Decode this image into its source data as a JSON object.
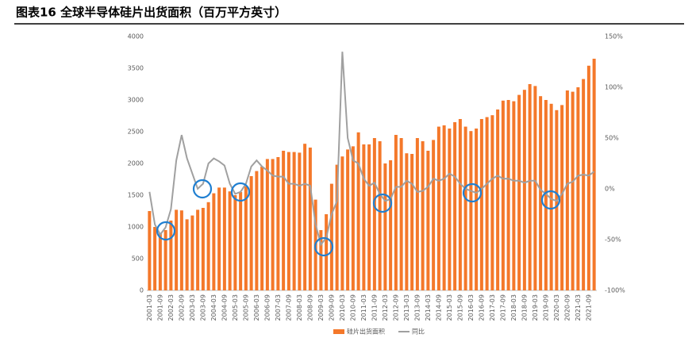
{
  "chart_data": {
    "type": "bar_line",
    "title": "图表16  全球半导体硅片出货面积（百万平方英寸）",
    "categories": [
      "2001-03",
      null,
      "2001-09",
      null,
      "2002-03",
      null,
      "2002-09",
      null,
      "2003-03",
      null,
      "2003-09",
      null,
      "2004-03",
      null,
      "2004-09",
      null,
      "2005-03",
      null,
      "2005-09",
      null,
      "2006-03",
      null,
      "2006-09",
      null,
      "2007-03",
      null,
      "2007-09",
      null,
      "2008-03",
      null,
      "2008-09",
      null,
      "2009-03",
      null,
      "2009-09",
      null,
      "2010-03",
      null,
      "2010-09",
      null,
      "2011-03",
      null,
      "2011-09",
      null,
      "2012-03",
      null,
      "2012-09",
      null,
      "2013-03",
      null,
      "2013-09",
      null,
      "2014-03",
      null,
      "2014-09",
      null,
      "2015-03",
      null,
      "2015-09",
      null,
      "2016-03",
      null,
      "2016-09",
      null,
      "2017-03",
      null,
      "2017-09",
      null,
      "2018-03",
      null,
      "2018-09",
      null,
      "2019-03",
      null,
      "2019-09",
      null,
      "2020-03",
      null,
      "2020-09",
      null,
      "2021-03",
      null,
      "2021-09",
      null
    ],
    "series": [
      {
        "name": "硅片出货面积",
        "color": "#f4782a",
        "values": [
          1250,
          1000,
          900,
          950,
          1100,
          1270,
          1260,
          1120,
          1180,
          1270,
          1300,
          1390,
          1530,
          1620,
          1620,
          1560,
          1500,
          1550,
          1640,
          1800,
          1880,
          1950,
          2070,
          2070,
          2100,
          2200,
          2180,
          2180,
          2170,
          2310,
          2250,
          1430,
          950,
          1200,
          1680,
          1980,
          2110,
          2220,
          2270,
          2490,
          2300,
          2300,
          2400,
          2350,
          2000,
          2050,
          2450,
          2400,
          2160,
          2150,
          2400,
          2350,
          2200,
          2370,
          2580,
          2600,
          2550,
          2650,
          2700,
          2580,
          2510,
          2550,
          2700,
          2730,
          2760,
          2850,
          2990,
          3000,
          2980,
          3080,
          3160,
          3250,
          3220,
          3060,
          3000,
          2940,
          2840,
          2920,
          3150,
          3130,
          3200,
          3330,
          3540,
          3650
        ]
      },
      {
        "name": "同比",
        "color": "#a0a0a0",
        "axis": "y2",
        "values": [
          -3,
          -35,
          -45,
          -38,
          -20,
          28,
          53,
          30,
          15,
          0,
          5,
          25,
          30,
          27,
          23,
          5,
          -5,
          -3,
          5,
          22,
          28,
          22,
          18,
          13,
          12,
          12,
          5,
          5,
          3,
          5,
          3,
          -35,
          -55,
          -48,
          -25,
          -12,
          135,
          50,
          28,
          25,
          10,
          3,
          6,
          -5,
          -12,
          -10,
          2,
          2,
          8,
          5,
          -3,
          -2,
          2,
          10,
          8,
          10,
          15,
          12,
          5,
          0,
          -2,
          -4,
          0,
          5,
          10,
          13,
          10,
          10,
          8,
          8,
          6,
          8,
          8,
          -1,
          -5,
          -10,
          -12,
          -5,
          5,
          7,
          13,
          14,
          13,
          17
        ]
      }
    ],
    "ylim": [
      0,
      4000
    ],
    "yticks": [
      0,
      500,
      1000,
      1500,
      2000,
      2500,
      3000,
      3500,
      4000
    ],
    "y2lim": [
      -100,
      150
    ],
    "y2ticks": [
      {
        "value": -100,
        "label": "-100%"
      },
      {
        "value": -50,
        "label": "-50%"
      },
      {
        "value": 0,
        "label": "0%"
      },
      {
        "value": 50,
        "label": "50%"
      },
      {
        "value": 100,
        "label": "100%"
      },
      {
        "value": 150,
        "label": "150%"
      }
    ]
  }
}
